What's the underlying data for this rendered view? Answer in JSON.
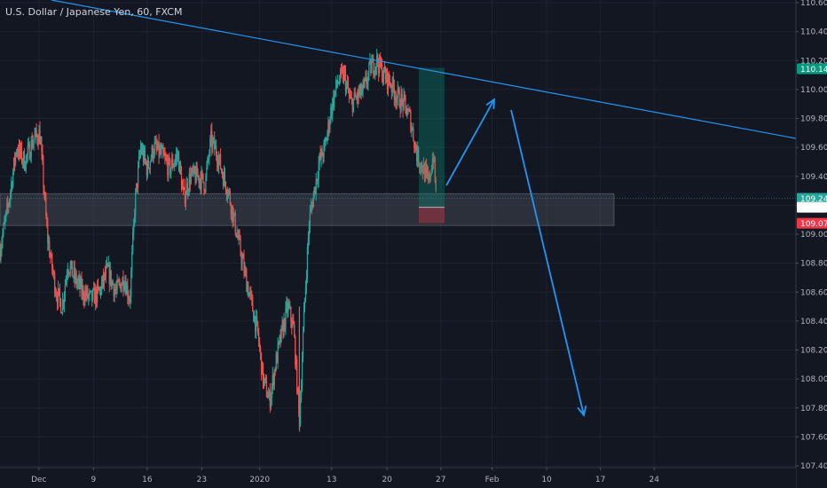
{
  "chart_data": {
    "type": "candlestick",
    "title": "U.S. Dollar / Japanese Yen, 60, FXCM",
    "ylim": [
      107.4,
      110.6
    ],
    "y_ticks": [
      "107.400",
      "107.600",
      "107.800",
      "108.000",
      "108.200",
      "108.400",
      "108.600",
      "108.800",
      "109.000",
      "109.200",
      "109.400",
      "109.600",
      "109.800",
      "110.000",
      "110.200",
      "110.400",
      "110.600"
    ],
    "x_ticks": [
      {
        "label": "Dec",
        "pos": 0.047
      },
      {
        "label": "9",
        "pos": 0.113
      },
      {
        "label": "16",
        "pos": 0.178
      },
      {
        "label": "23",
        "pos": 0.244
      },
      {
        "label": "2020",
        "pos": 0.314
      },
      {
        "label": "13",
        "pos": 0.401
      },
      {
        "label": "20",
        "pos": 0.468
      },
      {
        "label": "27",
        "pos": 0.533
      },
      {
        "label": "Feb",
        "pos": 0.595
      },
      {
        "label": "10",
        "pos": 0.661
      },
      {
        "label": "17",
        "pos": 0.726
      },
      {
        "label": "24",
        "pos": 0.791
      }
    ],
    "price_path": [
      [
        0.0,
        108.9
      ],
      [
        0.01,
        109.2
      ],
      [
        0.02,
        109.6
      ],
      [
        0.03,
        109.5
      ],
      [
        0.04,
        109.65
      ],
      [
        0.048,
        109.7
      ],
      [
        0.052,
        109.4
      ],
      [
        0.057,
        109.0
      ],
      [
        0.062,
        108.8
      ],
      [
        0.068,
        108.6
      ],
      [
        0.075,
        108.5
      ],
      [
        0.082,
        108.8
      ],
      [
        0.09,
        108.7
      ],
      [
        0.1,
        108.6
      ],
      [
        0.11,
        108.55
      ],
      [
        0.12,
        108.6
      ],
      [
        0.13,
        108.75
      ],
      [
        0.14,
        108.6
      ],
      [
        0.15,
        108.7
      ],
      [
        0.157,
        108.55
      ],
      [
        0.163,
        109.2
      ],
      [
        0.17,
        109.6
      ],
      [
        0.178,
        109.45
      ],
      [
        0.186,
        109.6
      ],
      [
        0.195,
        109.55
      ],
      [
        0.205,
        109.45
      ],
      [
        0.215,
        109.55
      ],
      [
        0.222,
        109.25
      ],
      [
        0.23,
        109.4
      ],
      [
        0.24,
        109.4
      ],
      [
        0.248,
        109.35
      ],
      [
        0.255,
        109.65
      ],
      [
        0.263,
        109.55
      ],
      [
        0.27,
        109.4
      ],
      [
        0.276,
        109.3
      ],
      [
        0.283,
        109.1
      ],
      [
        0.29,
        108.9
      ],
      [
        0.297,
        108.7
      ],
      [
        0.305,
        108.5
      ],
      [
        0.312,
        108.3
      ],
      [
        0.318,
        108.0
      ],
      [
        0.326,
        107.85
      ],
      [
        0.333,
        108.1
      ],
      [
        0.34,
        108.3
      ],
      [
        0.348,
        108.5
      ],
      [
        0.355,
        108.35
      ],
      [
        0.362,
        107.7
      ],
      [
        0.368,
        108.5
      ],
      [
        0.374,
        109.1
      ],
      [
        0.38,
        109.3
      ],
      [
        0.386,
        109.5
      ],
      [
        0.393,
        109.6
      ],
      [
        0.4,
        109.85
      ],
      [
        0.408,
        110.05
      ],
      [
        0.416,
        110.1
      ],
      [
        0.424,
        109.9
      ],
      [
        0.432,
        109.95
      ],
      [
        0.44,
        110.0
      ],
      [
        0.448,
        110.15
      ],
      [
        0.456,
        110.2
      ],
      [
        0.464,
        110.1
      ],
      [
        0.472,
        110.05
      ],
      [
        0.48,
        109.95
      ],
      [
        0.488,
        109.9
      ],
      [
        0.496,
        109.8
      ],
      [
        0.504,
        109.55
      ],
      [
        0.512,
        109.45
      ],
      [
        0.518,
        109.35
      ],
      [
        0.524,
        109.55
      ],
      [
        0.528,
        109.2
      ]
    ],
    "position": {
      "profit_top": 110.15,
      "entry": 109.186,
      "stop": 109.076
    },
    "price_badges": [
      {
        "label": "110.143",
        "value": 110.143,
        "color": "#089981"
      },
      {
        "label": "109.248",
        "value": 109.248,
        "color": "#26a69a"
      },
      {
        "label": "109.186",
        "value": 109.186,
        "color": "#ffffff"
      },
      {
        "label": "109.076",
        "value": 109.076,
        "color": "#f23645"
      }
    ],
    "colors": {
      "up": "#26a69a",
      "down": "#ef5350",
      "line": "#2196f3",
      "grid": "#1e222d",
      "axis_bg": "#131722"
    },
    "grid": true,
    "legend": "none"
  }
}
